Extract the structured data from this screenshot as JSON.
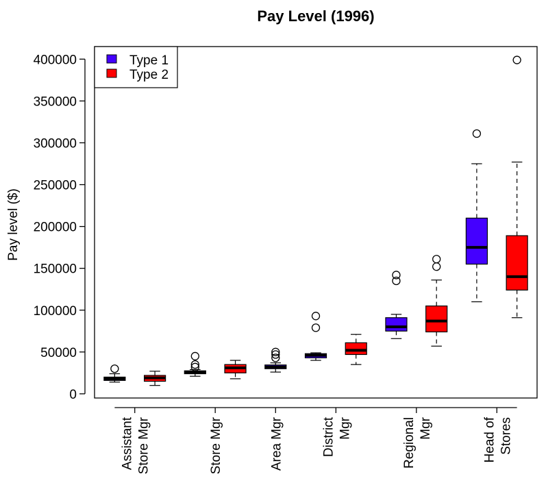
{
  "chart_data": {
    "type": "boxplot",
    "title": "Pay Level (1996)",
    "xlabel": "",
    "ylabel": "Pay level ($)",
    "ylim": [
      -5000,
      415000
    ],
    "yticks": [
      0,
      50000,
      100000,
      150000,
      200000,
      250000,
      300000,
      350000,
      400000
    ],
    "grid": false,
    "legend": {
      "position": "top-left",
      "entries": [
        "Type 1",
        "Type 2"
      ]
    },
    "colors": {
      "Type 1": "#4400ff",
      "Type 2": "#ff0000"
    },
    "categories": [
      {
        "lines": [
          "Assistant",
          "Store Mgr"
        ]
      },
      {
        "lines": [
          "Store Mgr"
        ]
      },
      {
        "lines": [
          "Area Mgr"
        ]
      },
      {
        "lines": [
          "District",
          "Mgr"
        ]
      },
      {
        "lines": [
          "Regional",
          "Mgr"
        ]
      },
      {
        "lines": [
          "Head of",
          "Stores"
        ]
      }
    ],
    "boxes": [
      {
        "category": 0,
        "series": "Type 1",
        "stats": [
          14000,
          16000,
          18000,
          20000,
          24000
        ],
        "outliers": [
          30000
        ]
      },
      {
        "category": 0,
        "series": "Type 2",
        "stats": [
          10000,
          15000,
          19000,
          22000,
          27000
        ],
        "outliers": []
      },
      {
        "category": 1,
        "series": "Type 1",
        "stats": [
          21000,
          24000,
          26000,
          27500,
          29000
        ],
        "outliers": [
          32000,
          35000,
          45000
        ]
      },
      {
        "category": 1,
        "series": "Type 2",
        "stats": [
          18000,
          25000,
          31000,
          35000,
          40000
        ],
        "outliers": []
      },
      {
        "category": 2,
        "series": "Type 1",
        "stats": [
          26000,
          30000,
          32000,
          34500,
          37000
        ],
        "outliers": [
          43000,
          47000,
          50000
        ]
      },
      {
        "category": 3,
        "series": "Type 1",
        "stats": [
          40000,
          43000,
          46000,
          48000,
          49000
        ],
        "outliers": [
          79000,
          93000
        ]
      },
      {
        "category": 3,
        "series": "Type 2",
        "stats": [
          35000,
          47000,
          52000,
          61000,
          71000
        ],
        "outliers": []
      },
      {
        "category": 4,
        "series": "Type 1",
        "stats": [
          66000,
          75000,
          80000,
          91000,
          95000
        ],
        "outliers": [
          135000,
          142000
        ]
      },
      {
        "category": 4,
        "series": "Type 2",
        "stats": [
          57000,
          74000,
          87000,
          105000,
          136000
        ],
        "outliers": [
          152000,
          161000
        ]
      },
      {
        "category": 5,
        "series": "Type 1",
        "stats": [
          110000,
          155000,
          175000,
          210000,
          275000
        ],
        "outliers": [
          311000
        ]
      },
      {
        "category": 5,
        "series": "Type 2",
        "stats": [
          91000,
          124000,
          140000,
          189000,
          277000
        ],
        "outliers": [
          399000
        ]
      }
    ]
  }
}
